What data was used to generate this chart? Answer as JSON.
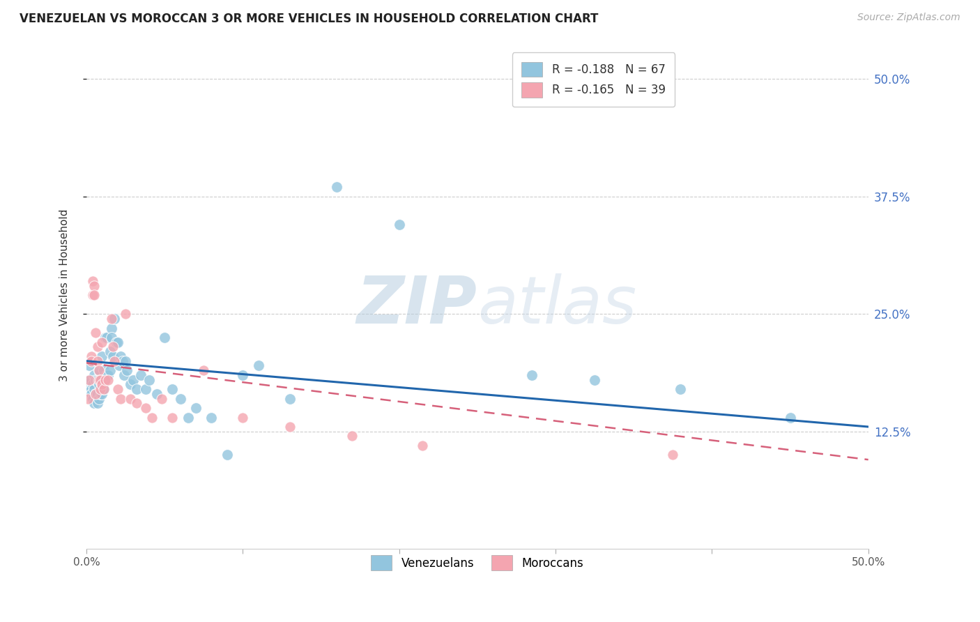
{
  "title": "VENEZUELAN VS MOROCCAN 3 OR MORE VEHICLES IN HOUSEHOLD CORRELATION CHART",
  "source": "Source: ZipAtlas.com",
  "ylabel": "3 or more Vehicles in Household",
  "ytick_labels": [
    "50.0%",
    "37.5%",
    "25.0%",
    "12.5%"
  ],
  "ytick_values": [
    0.5,
    0.375,
    0.25,
    0.125
  ],
  "xlim": [
    0.0,
    0.5
  ],
  "ylim": [
    0.0,
    0.54
  ],
  "legend_entry1": "R = -0.188   N = 67",
  "legend_entry2": "R = -0.165   N = 39",
  "legend_label1": "Venezuelans",
  "legend_label2": "Moroccans",
  "blue_color": "#92c5de",
  "pink_color": "#f4a5b0",
  "blue_line_color": "#2166ac",
  "pink_line_color": "#d6607a",
  "watermark_zip": "ZIP",
  "watermark_atlas": "atlas",
  "venezuelan_x": [
    0.001,
    0.002,
    0.002,
    0.003,
    0.003,
    0.004,
    0.004,
    0.005,
    0.005,
    0.005,
    0.006,
    0.006,
    0.007,
    0.007,
    0.007,
    0.008,
    0.008,
    0.008,
    0.009,
    0.009,
    0.01,
    0.01,
    0.01,
    0.011,
    0.011,
    0.012,
    0.012,
    0.013,
    0.013,
    0.014,
    0.015,
    0.015,
    0.016,
    0.016,
    0.017,
    0.018,
    0.019,
    0.02,
    0.021,
    0.022,
    0.023,
    0.024,
    0.025,
    0.026,
    0.028,
    0.03,
    0.032,
    0.035,
    0.038,
    0.04,
    0.045,
    0.05,
    0.055,
    0.06,
    0.065,
    0.07,
    0.08,
    0.09,
    0.1,
    0.11,
    0.13,
    0.16,
    0.2,
    0.285,
    0.325,
    0.38,
    0.45
  ],
  "venezuelan_y": [
    0.175,
    0.195,
    0.18,
    0.17,
    0.165,
    0.175,
    0.16,
    0.185,
    0.17,
    0.155,
    0.18,
    0.165,
    0.18,
    0.165,
    0.155,
    0.19,
    0.175,
    0.16,
    0.18,
    0.165,
    0.205,
    0.175,
    0.165,
    0.19,
    0.17,
    0.225,
    0.18,
    0.225,
    0.185,
    0.185,
    0.21,
    0.19,
    0.235,
    0.225,
    0.205,
    0.245,
    0.22,
    0.22,
    0.195,
    0.205,
    0.2,
    0.185,
    0.2,
    0.19,
    0.175,
    0.18,
    0.17,
    0.185,
    0.17,
    0.18,
    0.165,
    0.225,
    0.17,
    0.16,
    0.14,
    0.15,
    0.14,
    0.1,
    0.185,
    0.195,
    0.16,
    0.385,
    0.345,
    0.185,
    0.18,
    0.17,
    0.14
  ],
  "moroccan_x": [
    0.001,
    0.002,
    0.003,
    0.003,
    0.004,
    0.004,
    0.005,
    0.005,
    0.006,
    0.006,
    0.007,
    0.007,
    0.008,
    0.008,
    0.009,
    0.009,
    0.01,
    0.01,
    0.011,
    0.012,
    0.014,
    0.016,
    0.017,
    0.018,
    0.02,
    0.022,
    0.025,
    0.028,
    0.032,
    0.038,
    0.042,
    0.048,
    0.055,
    0.075,
    0.1,
    0.13,
    0.17,
    0.215,
    0.375
  ],
  "moroccan_y": [
    0.16,
    0.18,
    0.205,
    0.2,
    0.285,
    0.27,
    0.28,
    0.27,
    0.165,
    0.23,
    0.215,
    0.2,
    0.19,
    0.18,
    0.18,
    0.17,
    0.22,
    0.175,
    0.17,
    0.18,
    0.18,
    0.245,
    0.215,
    0.2,
    0.17,
    0.16,
    0.25,
    0.16,
    0.155,
    0.15,
    0.14,
    0.16,
    0.14,
    0.19,
    0.14,
    0.13,
    0.12,
    0.11,
    0.1
  ],
  "blue_trend_x": [
    0.0,
    0.5
  ],
  "blue_trend_y": [
    0.2,
    0.13
  ],
  "pink_trend_x": [
    0.0,
    0.5
  ],
  "pink_trend_y": [
    0.198,
    0.095
  ]
}
